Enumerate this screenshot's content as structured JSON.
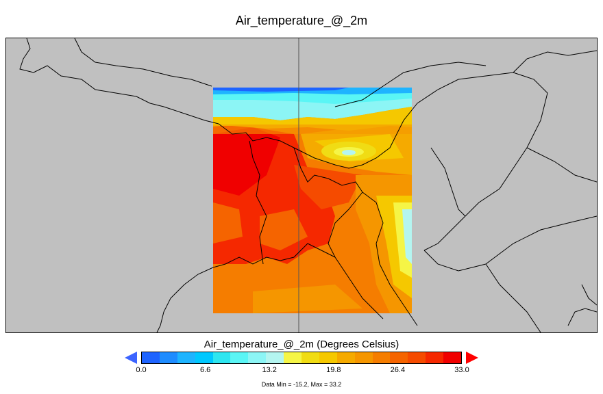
{
  "title": "Air_temperature_@_2m",
  "colorbar": {
    "title": "Air_temperature_@_2m (Degrees Celsius)",
    "colors": [
      "#1e64ff",
      "#1e8cff",
      "#1eb4ff",
      "#00c8ff",
      "#2ee6f0",
      "#5af5f5",
      "#8cf5f5",
      "#b4f5f0",
      "#f5f546",
      "#f0dc14",
      "#f5c800",
      "#f5aa00",
      "#f59600",
      "#f57d00",
      "#f56400",
      "#f54b00",
      "#f52800",
      "#f00000"
    ],
    "under_color": "#3c64ff",
    "over_color": "#ff0000",
    "ticks": [
      "0.0",
      "6.6",
      "13.2",
      "19.8",
      "26.4",
      "33.0"
    ]
  },
  "stats": "Data Min = -15.2, Max = 33.2",
  "map": {
    "background_color": "#c0c0c0",
    "border_color": "#000000"
  }
}
